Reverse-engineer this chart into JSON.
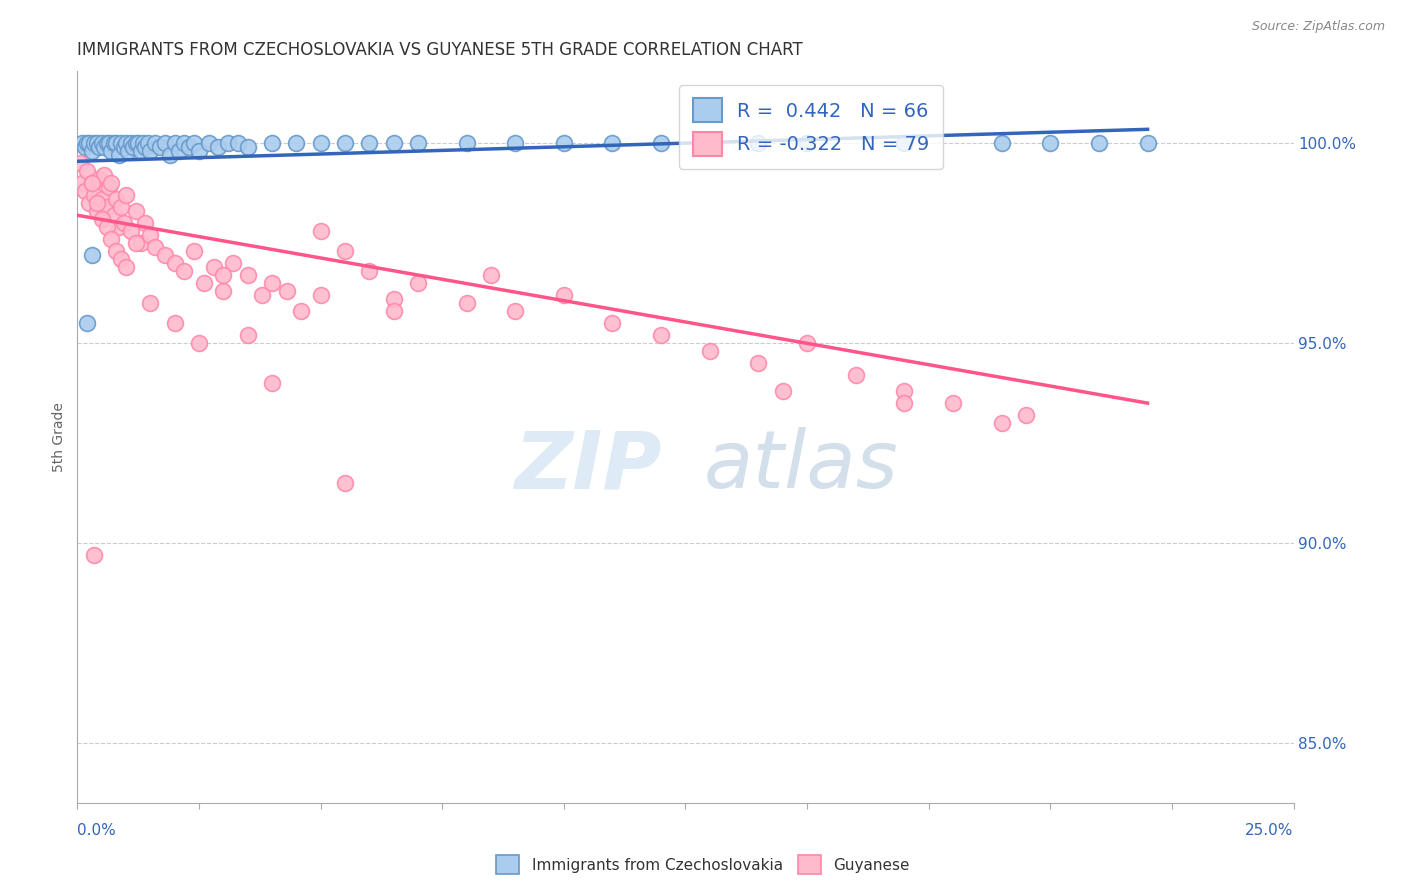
{
  "title": "IMMIGRANTS FROM CZECHOSLOVAKIA VS GUYANESE 5TH GRADE CORRELATION CHART",
  "source": "Source: ZipAtlas.com",
  "ylabel": "5th Grade",
  "yticks": [
    85.0,
    90.0,
    95.0,
    100.0
  ],
  "ytick_labels": [
    "85.0%",
    "90.0%",
    "95.0%",
    "100.0%"
  ],
  "xmin": 0.0,
  "xmax": 25.0,
  "ymin": 83.5,
  "ymax": 101.8,
  "blue_R": 0.442,
  "blue_N": 66,
  "pink_R": -0.322,
  "pink_N": 79,
  "blue_color": "#6699CC",
  "blue_fill": "#AACCEE",
  "pink_color": "#FF88AA",
  "pink_fill": "#FFBBCC",
  "blue_line_color": "#3366BB",
  "pink_line_color": "#FF5588",
  "legend_label_blue": "Immigrants from Czechoslovakia",
  "legend_label_pink": "Guyanese",
  "title_color": "#333333",
  "axis_label_color": "#3366BB",
  "background_color": "#FFFFFF",
  "blue_scatter_x": [
    0.1,
    0.15,
    0.2,
    0.25,
    0.3,
    0.35,
    0.4,
    0.45,
    0.5,
    0.55,
    0.6,
    0.65,
    0.7,
    0.75,
    0.8,
    0.85,
    0.9,
    0.95,
    1.0,
    1.05,
    1.1,
    1.15,
    1.2,
    1.25,
    1.3,
    1.35,
    1.4,
    1.45,
    1.5,
    1.6,
    1.7,
    1.8,
    1.9,
    2.0,
    2.1,
    2.2,
    2.3,
    2.4,
    2.5,
    2.7,
    2.9,
    3.1,
    3.3,
    3.5,
    4.0,
    4.5,
    5.0,
    5.5,
    6.0,
    6.5,
    7.0,
    8.0,
    9.0,
    10.0,
    11.0,
    12.0,
    13.0,
    14.0,
    15.0,
    17.0,
    19.0,
    20.0,
    21.0,
    22.0,
    0.2,
    0.3
  ],
  "blue_scatter_y": [
    100.0,
    99.9,
    100.0,
    100.0,
    99.8,
    100.0,
    100.0,
    99.9,
    100.0,
    99.9,
    100.0,
    100.0,
    99.8,
    100.0,
    100.0,
    99.7,
    100.0,
    99.9,
    100.0,
    99.8,
    100.0,
    99.9,
    100.0,
    100.0,
    99.8,
    100.0,
    99.9,
    100.0,
    99.8,
    100.0,
    99.9,
    100.0,
    99.7,
    100.0,
    99.8,
    100.0,
    99.9,
    100.0,
    99.8,
    100.0,
    99.9,
    100.0,
    100.0,
    99.9,
    100.0,
    100.0,
    100.0,
    100.0,
    100.0,
    100.0,
    100.0,
    100.0,
    100.0,
    100.0,
    100.0,
    100.0,
    100.0,
    100.0,
    100.0,
    100.0,
    100.0,
    100.0,
    100.0,
    100.0,
    95.5,
    97.2
  ],
  "pink_scatter_x": [
    0.05,
    0.1,
    0.15,
    0.2,
    0.25,
    0.3,
    0.35,
    0.4,
    0.45,
    0.5,
    0.55,
    0.6,
    0.65,
    0.7,
    0.75,
    0.8,
    0.85,
    0.9,
    0.95,
    1.0,
    1.1,
    1.2,
    1.3,
    1.4,
    1.5,
    1.6,
    1.8,
    2.0,
    2.2,
    2.4,
    2.6,
    2.8,
    3.0,
    3.2,
    3.5,
    3.8,
    4.0,
    4.3,
    4.6,
    5.0,
    5.5,
    6.0,
    6.5,
    7.0,
    8.0,
    9.0,
    10.0,
    11.0,
    12.0,
    13.0,
    14.0,
    15.0,
    16.0,
    17.0,
    18.0,
    19.5,
    0.3,
    0.4,
    0.5,
    0.6,
    0.7,
    0.8,
    0.9,
    1.0,
    1.2,
    1.5,
    2.0,
    2.5,
    3.0,
    3.5,
    4.0,
    5.0,
    6.5,
    8.5,
    14.5,
    17.0,
    19.0,
    5.5,
    0.35
  ],
  "pink_scatter_y": [
    99.5,
    99.0,
    98.8,
    99.3,
    98.5,
    99.0,
    98.7,
    98.3,
    99.1,
    98.6,
    99.2,
    98.4,
    98.9,
    99.0,
    98.2,
    98.6,
    97.9,
    98.4,
    98.0,
    98.7,
    97.8,
    98.3,
    97.5,
    98.0,
    97.7,
    97.4,
    97.2,
    97.0,
    96.8,
    97.3,
    96.5,
    96.9,
    96.3,
    97.0,
    96.7,
    96.2,
    96.5,
    96.3,
    95.8,
    96.2,
    97.3,
    96.8,
    96.1,
    96.5,
    96.0,
    95.8,
    96.2,
    95.5,
    95.2,
    94.8,
    94.5,
    95.0,
    94.2,
    93.8,
    93.5,
    93.2,
    99.0,
    98.5,
    98.1,
    97.9,
    97.6,
    97.3,
    97.1,
    96.9,
    97.5,
    96.0,
    95.5,
    95.0,
    96.7,
    95.2,
    94.0,
    97.8,
    95.8,
    96.7,
    93.8,
    93.5,
    93.0,
    91.5,
    89.7
  ],
  "blue_trendline_x": [
    0.0,
    22.0
  ],
  "blue_trendline_y": [
    99.55,
    100.35
  ],
  "pink_trendline_x": [
    0.0,
    22.0
  ],
  "pink_trendline_y": [
    98.2,
    93.5
  ]
}
